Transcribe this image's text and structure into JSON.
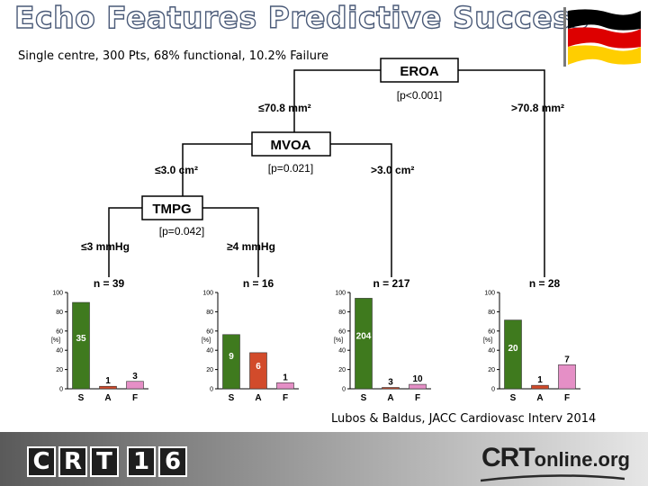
{
  "slide": {
    "title": "Echo Features Predictive Success",
    "subtitle": "Single centre, 300 Pts, 68% functional, 10.2% Failure",
    "citation": "Lubos & Baldus, JACC Cardiovasc Interv 2014"
  },
  "flag": {
    "colors": [
      "#000000",
      "#dd0000",
      "#ffce00"
    ]
  },
  "tree": {
    "root": {
      "label": "EROA",
      "p": "[p<0.001]"
    },
    "root_left_label": "≤70.8 mm²",
    "root_right_label": ">70.8 mm²",
    "mid": {
      "label": "MVOA",
      "p": "[p=0.021]"
    },
    "mid_left_label": "≤3.0 cm²",
    "mid_right_label": ">3.0 cm²",
    "low": {
      "label": "TMPG",
      "p": "[p=0.042]"
    },
    "low_left_label": "≤3 mmHg",
    "low_right_label": "≥4 mmHg"
  },
  "chart_data": [
    {
      "type": "bar",
      "n_label": "n = 39",
      "ylabel": "[%]",
      "categories": [
        "S",
        "A",
        "F"
      ],
      "values": [
        89.7,
        2.6,
        7.7
      ],
      "labels": [
        "35",
        "1",
        "3"
      ],
      "yticks": [
        0,
        20,
        40,
        60,
        80,
        100
      ],
      "ylim": [
        0,
        100
      ]
    },
    {
      "type": "bar",
      "n_label": "n = 16",
      "ylabel": "[%]",
      "categories": [
        "S",
        "A",
        "F"
      ],
      "values": [
        56.3,
        37.5,
        6.3
      ],
      "labels": [
        "9",
        "6",
        "1"
      ],
      "yticks": [
        0,
        20,
        40,
        60,
        80,
        100
      ],
      "ylim": [
        0,
        100
      ]
    },
    {
      "type": "bar",
      "n_label": "n = 217",
      "ylabel": "[%]",
      "categories": [
        "S",
        "A",
        "F"
      ],
      "values": [
        94.0,
        1.4,
        4.6
      ],
      "labels": [
        "204",
        "3",
        "10"
      ],
      "yticks": [
        0,
        20,
        40,
        60,
        80,
        100
      ],
      "ylim": [
        0,
        100
      ]
    },
    {
      "type": "bar",
      "n_label": "n = 28",
      "ylabel": "[%]",
      "categories": [
        "S",
        "A",
        "F"
      ],
      "values": [
        71.4,
        3.6,
        25.0
      ],
      "labels": [
        "20",
        "1",
        "7"
      ],
      "yticks": [
        0,
        20,
        40,
        60,
        80,
        100
      ],
      "ylim": [
        0,
        100
      ]
    }
  ],
  "bar_colors": [
    "#3f7a1e",
    "#d24b2b",
    "#e58fc6"
  ],
  "footer": {
    "logo_left_chars": [
      "C",
      "R",
      "T",
      "1",
      "6"
    ],
    "logo_right_big": "CRT",
    "logo_right_small": "online.org"
  }
}
